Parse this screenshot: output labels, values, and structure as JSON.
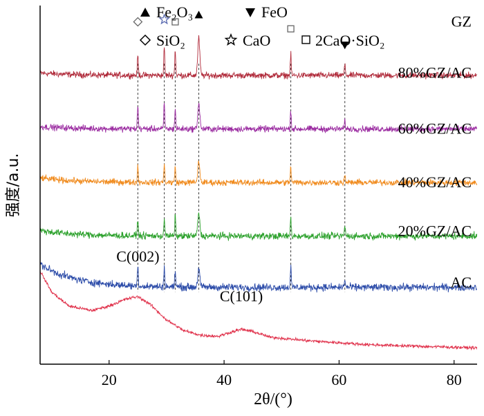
{
  "chart_data": {
    "type": "line",
    "title": "",
    "xlabel": "2θ/(°)",
    "ylabel": "强度/a.u.",
    "xlim": [
      8,
      84
    ],
    "x_ticks": [
      20,
      40,
      60,
      80
    ],
    "y_ticks_shown": false,
    "grid": false,
    "legend_position": "top",
    "legend": [
      {
        "marker": "filled-triangle-up",
        "label": "Fe₂O₃",
        "icon": "filled-triangle-up-icon"
      },
      {
        "marker": "filled-triangle-down",
        "label": "FeO",
        "icon": "filled-triangle-down-icon"
      },
      {
        "marker": "open-diamond",
        "label": "SiO₂",
        "icon": "open-diamond-icon"
      },
      {
        "marker": "open-star",
        "label": "CaO",
        "icon": "open-star-icon"
      },
      {
        "marker": "open-square",
        "label": "2CaO·SiO₂",
        "icon": "open-square-icon"
      }
    ],
    "series": [
      {
        "name": "GZ",
        "color": "#b02a3a",
        "baseline": 5.9,
        "noise": 0.1,
        "tilt": 0.05,
        "peaks": [
          [
            25.0,
            0.42,
            0.12
          ],
          [
            29.6,
            0.6,
            0.12
          ],
          [
            31.5,
            0.55,
            0.12
          ],
          [
            35.6,
            0.8,
            0.25
          ],
          [
            51.6,
            0.45,
            0.12
          ],
          [
            61.0,
            0.2,
            0.15
          ]
        ]
      },
      {
        "name": "80%GZ/AC",
        "color": "#9a2aa0",
        "baseline": 4.75,
        "noise": 0.1,
        "tilt": 0.05,
        "peaks": [
          [
            25.0,
            0.5,
            0.12
          ],
          [
            29.6,
            0.55,
            0.12
          ],
          [
            31.5,
            0.45,
            0.12
          ],
          [
            35.6,
            0.55,
            0.25
          ],
          [
            51.6,
            0.4,
            0.12
          ],
          [
            61.0,
            0.15,
            0.15
          ]
        ]
      },
      {
        "name": "60%GZ/AC",
        "color": "#f08a1c",
        "baseline": 3.6,
        "noise": 0.1,
        "tilt": 0.1,
        "peaks": [
          [
            25.0,
            0.35,
            0.12
          ],
          [
            29.6,
            0.4,
            0.12
          ],
          [
            31.5,
            0.35,
            0.12
          ],
          [
            35.6,
            0.45,
            0.25
          ],
          [
            51.6,
            0.35,
            0.12
          ],
          [
            61.0,
            0.12,
            0.15
          ]
        ]
      },
      {
        "name": "40%GZ/AC",
        "color": "#2aa02a",
        "baseline": 2.45,
        "noise": 0.11,
        "tilt": 0.12,
        "peaks": [
          [
            25.0,
            0.35,
            0.12
          ],
          [
            29.6,
            0.4,
            0.12
          ],
          [
            31.5,
            0.42,
            0.12
          ],
          [
            35.6,
            0.5,
            0.25
          ],
          [
            51.6,
            0.4,
            0.12
          ],
          [
            61.0,
            0.2,
            0.15
          ]
        ]
      },
      {
        "name": "20%GZ/AC",
        "color": "#2a4aa8",
        "baseline": 1.35,
        "noise": 0.12,
        "tilt": 0.5,
        "peaks": [
          [
            25.0,
            0.45,
            0.12
          ],
          [
            29.6,
            0.42,
            0.12
          ],
          [
            31.5,
            0.38,
            0.12
          ],
          [
            35.6,
            0.4,
            0.25
          ],
          [
            51.6,
            0.45,
            0.12
          ],
          [
            61.0,
            0.15,
            0.15
          ]
        ]
      },
      {
        "name": "AC",
        "color": "#e0304a",
        "baseline": 0.0,
        "noise": 0.05,
        "tilt": 0.0,
        "background": [
          [
            8,
            1.7
          ],
          [
            10,
            1.25
          ],
          [
            13,
            0.95
          ],
          [
            17,
            0.85
          ],
          [
            20,
            0.95
          ],
          [
            23,
            1.1
          ],
          [
            25,
            1.15
          ],
          [
            27,
            1.0
          ],
          [
            30,
            0.65
          ],
          [
            33,
            0.42
          ],
          [
            36,
            0.32
          ],
          [
            39,
            0.3
          ],
          [
            41,
            0.38
          ],
          [
            43,
            0.45
          ],
          [
            45,
            0.4
          ],
          [
            48,
            0.28
          ],
          [
            55,
            0.2
          ],
          [
            65,
            0.12
          ],
          [
            75,
            0.08
          ],
          [
            84,
            0.05
          ]
        ],
        "peaks": []
      }
    ],
    "peak_markers": [
      {
        "x": 25.0,
        "marker": "open-diamond"
      },
      {
        "x": 29.6,
        "marker": "open-star"
      },
      {
        "x": 31.5,
        "marker": "open-square"
      },
      {
        "x": 35.6,
        "marker": "filled-triangle-up"
      },
      {
        "x": 51.6,
        "marker": "open-square"
      },
      {
        "x": 61.0,
        "marker": "filled-triangle-down"
      }
    ],
    "reference_lines_x": [
      25.0,
      29.6,
      31.5,
      35.6,
      51.6,
      61.0
    ],
    "annotations": [
      {
        "text": "C(002)",
        "x": 25,
        "y": 1.9
      },
      {
        "text": "C(101)",
        "x": 43,
        "y": 1.05
      }
    ],
    "ylim": [
      -0.3,
      7.4
    ]
  }
}
